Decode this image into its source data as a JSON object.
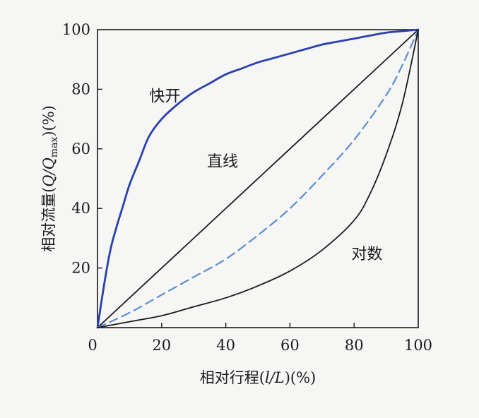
{
  "chart_data": {
    "type": "line",
    "xlabel": {
      "prefix": "相对行程",
      "open": "(",
      "var": "l/L",
      "close": ")(%)"
    },
    "ylabel": {
      "prefix": "相对流量",
      "open": "(",
      "var": "Q/Q",
      "sub": "max",
      "close": ")(%)"
    },
    "xlim": [
      0,
      100
    ],
    "ylim": [
      0,
      100
    ],
    "x_ticks": [
      "0",
      "20",
      "40",
      "60",
      "80",
      "100"
    ],
    "y_ticks": [
      "20",
      "40",
      "60",
      "80",
      "100"
    ],
    "grid": false,
    "series": [
      {
        "name": "快开",
        "color": "#2a3fb0",
        "dash": "solid",
        "x": [
          0,
          2,
          4,
          6,
          8,
          10,
          13,
          16,
          20,
          25,
          30,
          35,
          40,
          45,
          50,
          55,
          60,
          65,
          70,
          75,
          80,
          85,
          90,
          95,
          100
        ],
        "y": [
          0,
          14,
          26,
          34,
          41,
          48,
          56,
          64,
          70,
          75,
          79,
          82,
          85,
          87,
          89,
          90.5,
          92,
          93.5,
          95,
          96,
          97,
          98,
          99,
          99.5,
          100
        ]
      },
      {
        "name": "直线",
        "color": "#1a1a1a",
        "dash": "solid",
        "x": [
          0,
          100
        ],
        "y": [
          0,
          100
        ]
      },
      {
        "color": "#5b8ed6",
        "dash": "dashed",
        "x": [
          0,
          10,
          20,
          30,
          40,
          50,
          60,
          70,
          80,
          90,
          95,
          100
        ],
        "y": [
          0,
          5,
          11,
          17,
          23,
          31,
          40,
          51,
          63,
          78,
          88,
          100
        ]
      },
      {
        "name": "对数",
        "color": "#1a1a1a",
        "dash": "solid",
        "x": [
          0,
          10,
          20,
          30,
          40,
          50,
          60,
          70,
          80,
          85,
          90,
          95,
          100
        ],
        "y": [
          0,
          2,
          4,
          7,
          10,
          14,
          19,
          26,
          36,
          45,
          58,
          75,
          100
        ]
      }
    ],
    "annotations": [
      {
        "text": "快开",
        "x": 21,
        "y": 76
      },
      {
        "text": "直线",
        "x": 39,
        "y": 54
      },
      {
        "text": "对数",
        "x": 84,
        "y": 23
      }
    ]
  }
}
